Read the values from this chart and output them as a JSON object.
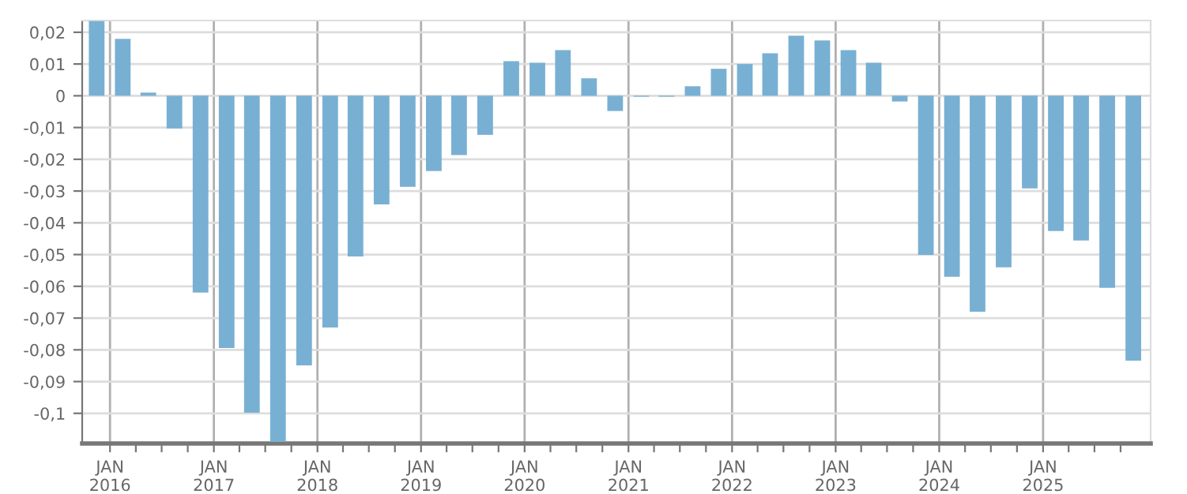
{
  "chart_data": {
    "type": "bar",
    "color": "#78b0d3",
    "x": [
      "2015-11-15",
      "2016-02-15",
      "2016-05-15",
      "2016-08-15",
      "2016-11-15",
      "2017-02-15",
      "2017-05-15",
      "2017-08-15",
      "2017-11-15",
      "2018-02-15",
      "2018-05-15",
      "2018-08-15",
      "2018-11-15",
      "2019-02-15",
      "2019-05-15",
      "2019-08-15",
      "2019-11-15",
      "2020-02-15",
      "2020-05-15",
      "2020-08-15",
      "2020-11-15",
      "2021-02-15",
      "2021-05-15",
      "2021-08-15",
      "2021-11-15",
      "2022-02-15",
      "2022-05-15",
      "2022-08-15",
      "2022-11-15",
      "2023-02-15",
      "2023-05-15",
      "2023-08-15",
      "2023-11-15",
      "2024-02-15",
      "2024-05-15",
      "2024-08-15",
      "2024-11-15",
      "2025-02-15",
      "2025-05-15",
      "2025-08-15",
      "2025-11-15"
    ],
    "values": [
      0.0235,
      0.0179,
      0.001,
      -0.0103,
      -0.062,
      -0.0794,
      -0.0998,
      -0.109,
      -0.0849,
      -0.073,
      -0.0506,
      -0.0342,
      -0.0287,
      -0.0237,
      -0.0187,
      -0.0123,
      0.0109,
      0.0104,
      0.0144,
      0.0055,
      -0.0048,
      -0.0003,
      -0.0003,
      0.003,
      0.0085,
      0.01,
      0.0134,
      0.0189,
      0.0174,
      0.0144,
      0.0104,
      -0.0018,
      -0.0501,
      -0.057,
      -0.068,
      -0.054,
      -0.0292,
      -0.0426,
      -0.0456,
      -0.0605,
      -0.0834
    ],
    "xlim": [
      "2015-09-25",
      "2026-01-15"
    ],
    "xticks": [
      {
        "value": "2016-01-01",
        "label": "JAN\n2016"
      },
      {
        "value": "2016-04-01",
        "label": null
      },
      {
        "value": "2016-07-01",
        "label": null
      },
      {
        "value": "2016-10-01",
        "label": null
      },
      {
        "value": "2017-01-01",
        "label": "JAN\n2017"
      },
      {
        "value": "2017-04-01",
        "label": null
      },
      {
        "value": "2017-07-01",
        "label": null
      },
      {
        "value": "2017-10-01",
        "label": null
      },
      {
        "value": "2018-01-01",
        "label": "JAN\n2018"
      },
      {
        "value": "2018-04-01",
        "label": null
      },
      {
        "value": "2018-07-01",
        "label": null
      },
      {
        "value": "2018-10-01",
        "label": null
      },
      {
        "value": "2019-01-01",
        "label": "JAN\n2019"
      },
      {
        "value": "2019-04-01",
        "label": null
      },
      {
        "value": "2019-07-01",
        "label": null
      },
      {
        "value": "2019-10-01",
        "label": null
      },
      {
        "value": "2020-01-01",
        "label": "JAN\n2020"
      },
      {
        "value": "2020-04-01",
        "label": null
      },
      {
        "value": "2020-07-01",
        "label": null
      },
      {
        "value": "2020-10-01",
        "label": null
      },
      {
        "value": "2021-01-01",
        "label": "JAN\n2021"
      },
      {
        "value": "2021-04-01",
        "label": null
      },
      {
        "value": "2021-07-01",
        "label": null
      },
      {
        "value": "2021-10-01",
        "label": null
      },
      {
        "value": "2022-01-01",
        "label": "JAN\n2022"
      },
      {
        "value": "2022-04-01",
        "label": null
      },
      {
        "value": "2022-07-01",
        "label": null
      },
      {
        "value": "2022-10-01",
        "label": null
      },
      {
        "value": "2023-01-01",
        "label": "JAN\n2023"
      },
      {
        "value": "2023-04-01",
        "label": null
      },
      {
        "value": "2023-07-01",
        "label": null
      },
      {
        "value": "2023-10-01",
        "label": null
      },
      {
        "value": "2024-01-01",
        "label": "JAN\n2024"
      },
      {
        "value": "2024-04-01",
        "label": null
      },
      {
        "value": "2024-07-01",
        "label": null
      },
      {
        "value": "2024-10-01",
        "label": null
      },
      {
        "value": "2025-01-01",
        "label": "JAN\n2025"
      },
      {
        "value": "2025-04-01",
        "label": null
      },
      {
        "value": "2025-07-01",
        "label": null
      },
      {
        "value": "2025-10-01",
        "label": null
      }
    ],
    "ylim": [
      -0.1095,
      0.0237
    ],
    "yticks": [
      {
        "value": -0.1,
        "label": "-0,1"
      },
      {
        "value": -0.09,
        "label": "-0,09"
      },
      {
        "value": -0.08,
        "label": "-0,08"
      },
      {
        "value": -0.07,
        "label": "-0,07"
      },
      {
        "value": -0.06,
        "label": "-0,06"
      },
      {
        "value": -0.05,
        "label": "-0,05"
      },
      {
        "value": -0.04,
        "label": "-0,04"
      },
      {
        "value": -0.03,
        "label": "-0,03"
      },
      {
        "value": -0.02,
        "label": "-0,02"
      },
      {
        "value": -0.01,
        "label": "-0,01"
      },
      0,
      {
        "value": 0.01,
        "label": "0,01"
      },
      {
        "value": 0.02,
        "label": "0,02"
      }
    ],
    "grid": true
  }
}
